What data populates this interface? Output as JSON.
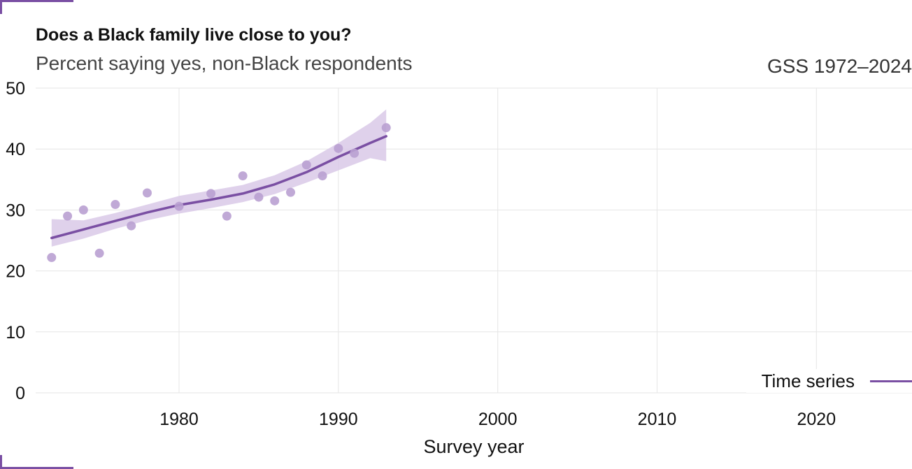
{
  "chart_data": {
    "type": "line",
    "title": "Does a Black family live close to you?",
    "subtitle": "Percent saying yes, non-Black respondents",
    "source": "GSS 1972–2024",
    "xlabel": "Survey year",
    "ylabel": "",
    "xlim": [
      1971,
      2026
    ],
    "ylim": [
      0,
      50
    ],
    "x_ticks": [
      1980,
      1990,
      2000,
      2010,
      2020
    ],
    "y_ticks": [
      0,
      10,
      20,
      30,
      40,
      50
    ],
    "grid": true,
    "legend": {
      "placement": "bottom-right",
      "label": "Time series"
    },
    "colors": {
      "accent": "#7a4fa3",
      "points": "#b9a0d2",
      "band": "#d9c9e8",
      "grid": "#e6e6e6"
    },
    "points": {
      "x": [
        1972,
        1973,
        1974,
        1975,
        1976,
        1977,
        1978,
        1980,
        1982,
        1983,
        1984,
        1985,
        1986,
        1987,
        1988,
        1989,
        1990,
        1991,
        1993
      ],
      "y": [
        22.2,
        29.0,
        30.0,
        22.9,
        30.9,
        27.4,
        32.8,
        30.6,
        32.7,
        29.0,
        35.6,
        32.1,
        31.5,
        32.9,
        37.4,
        35.6,
        40.1,
        39.3,
        43.5
      ]
    },
    "series": [
      {
        "name": "Time series",
        "x": [
          1972,
          1974,
          1976,
          1978,
          1980,
          1982,
          1984,
          1986,
          1988,
          1990,
          1992,
          1993
        ],
        "y": [
          25.4,
          26.8,
          28.2,
          29.6,
          30.8,
          31.7,
          32.7,
          34.2,
          36.2,
          38.7,
          41.0,
          42.1
        ],
        "lower": [
          24.0,
          25.3,
          26.9,
          28.3,
          29.4,
          30.3,
          31.3,
          32.6,
          34.5,
          36.5,
          38.5,
          38.0
        ],
        "upper": [
          28.5,
          28.3,
          29.5,
          30.9,
          32.3,
          33.2,
          34.1,
          35.7,
          38.0,
          41.0,
          44.3,
          46.5
        ]
      }
    ]
  }
}
